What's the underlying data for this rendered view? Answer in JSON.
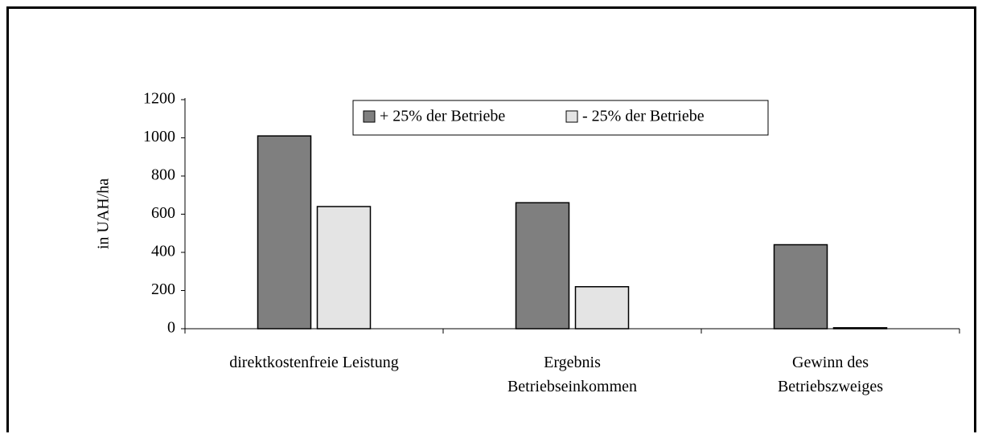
{
  "chart_data": {
    "type": "bar",
    "y_label": "in UAH/ha",
    "categories": [
      "direktkostenfreie Leistung",
      "Ergebnis\nBetriebseinkommen",
      "Gewinn des\nBetriebszweiges"
    ],
    "series": [
      {
        "name": "+ 25% der Betriebe",
        "color": "#7f7f7f",
        "values": [
          1010,
          660,
          440
        ]
      },
      {
        "name": "- 25% der Betriebe",
        "color": "#e4e4e4",
        "values": [
          640,
          220,
          5
        ]
      }
    ],
    "ylim": [
      0,
      1200
    ],
    "yticks": [
      0,
      200,
      400,
      600,
      800,
      1000,
      1200
    ],
    "grid": false,
    "legend": "top"
  }
}
